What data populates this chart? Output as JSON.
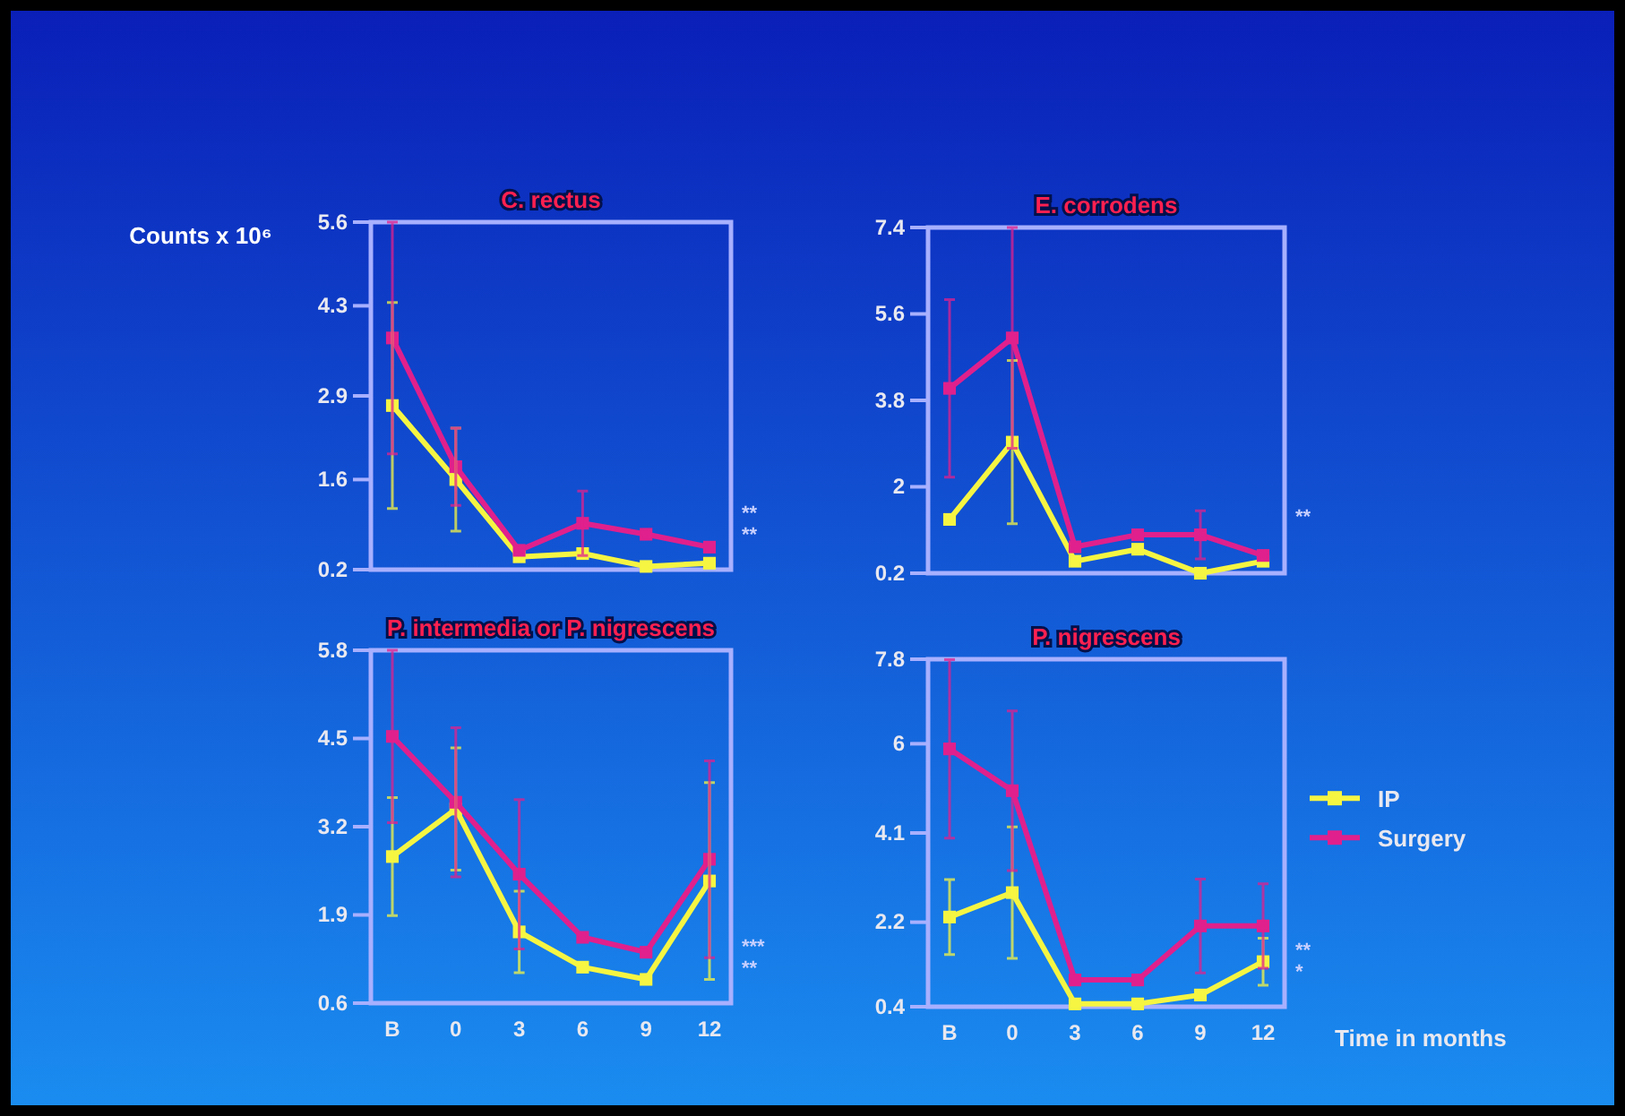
{
  "chart_data": [
    {
      "type": "line",
      "title": "C. rectus",
      "ylabel": "Counts x 10⁶",
      "categories": [
        null,
        null,
        null,
        null,
        null,
        null
      ],
      "ylim": [
        0.2,
        5.6
      ],
      "yticks": [
        0.2,
        1.6,
        2.9,
        4.3,
        5.6
      ],
      "tick_labels": "y",
      "marker": "square",
      "line_style": "solid",
      "annotations": [
        "**",
        "**"
      ],
      "series": [
        {
          "color": "#f5f542",
          "values": [
            2.75,
            1.6,
            0.4,
            0.45,
            0.25,
            0.3
          ],
          "errors": [
            1.6,
            0.8,
            null,
            null,
            null,
            null
          ]
        },
        {
          "color": "#e0208c",
          "values": [
            3.8,
            1.8,
            0.5,
            0.92,
            0.75,
            0.55
          ],
          "errors": [
            1.8,
            0.6,
            null,
            0.5,
            null,
            null
          ]
        }
      ]
    },
    {
      "type": "line",
      "title": "E. corrodens",
      "categories": [
        null,
        null,
        null,
        null,
        null,
        null
      ],
      "ylim": [
        0.2,
        7.4
      ],
      "yticks": [
        0.2,
        2.0,
        3.8,
        5.6,
        7.4
      ],
      "tick_labels": "y",
      "marker": "square",
      "line_style": "solid",
      "annotations": [
        "**"
      ],
      "series": [
        {
          "color": "#f5f542",
          "values": [
            1.32,
            2.93,
            0.45,
            0.7,
            0.2,
            0.45
          ],
          "errors": [
            null,
            1.7,
            null,
            null,
            null,
            null
          ]
        },
        {
          "color": "#e0208c",
          "values": [
            4.05,
            5.1,
            0.75,
            1.0,
            1.0,
            0.57
          ],
          "errors": [
            1.85,
            2.3,
            null,
            null,
            0.5,
            null
          ]
        }
      ]
    },
    {
      "type": "line",
      "title": "P. intermedia or P. nigrescens",
      "categories": [
        "B",
        "0",
        "3",
        "6",
        "9",
        "12"
      ],
      "ylim": [
        0.6,
        5.8
      ],
      "yticks": [
        0.6,
        1.9,
        3.2,
        4.5,
        5.8
      ],
      "marker": "square",
      "line_style": "solid",
      "annotations": [
        "***",
        "**"
      ],
      "series": [
        {
          "color": "#f5f542",
          "values": [
            2.76,
            3.46,
            1.65,
            1.13,
            0.95,
            2.4
          ],
          "errors": [
            0.87,
            0.9,
            0.6,
            null,
            null,
            1.45
          ]
        },
        {
          "color": "#e0208c",
          "values": [
            4.53,
            3.56,
            2.5,
            1.57,
            1.35,
            2.72
          ],
          "errors": [
            1.27,
            1.1,
            1.1,
            null,
            null,
            1.45
          ]
        }
      ]
    },
    {
      "type": "line",
      "title": "P. nigrescens",
      "xlabel": "Time in months",
      "categories": [
        "B",
        "0",
        "3",
        "6",
        "9",
        "12"
      ],
      "ylim": [
        0.4,
        7.8
      ],
      "yticks": [
        0.4,
        2.2,
        4.1,
        6.0,
        7.8
      ],
      "marker": "square",
      "line_style": "solid",
      "legend": "right",
      "annotations": [
        "**",
        "*"
      ],
      "series": [
        {
          "name": "IP",
          "color": "#f5f542",
          "values": [
            2.31,
            2.83,
            0.46,
            0.46,
            0.65,
            1.36
          ],
          "errors": [
            0.8,
            1.4,
            null,
            null,
            null,
            0.5
          ]
        },
        {
          "name": "Surgery",
          "color": "#e0208c",
          "values": [
            5.89,
            5.0,
            0.97,
            0.97,
            2.12,
            2.12
          ],
          "errors": [
            1.9,
            1.7,
            null,
            null,
            1.0,
            0.9
          ]
        }
      ]
    }
  ]
}
